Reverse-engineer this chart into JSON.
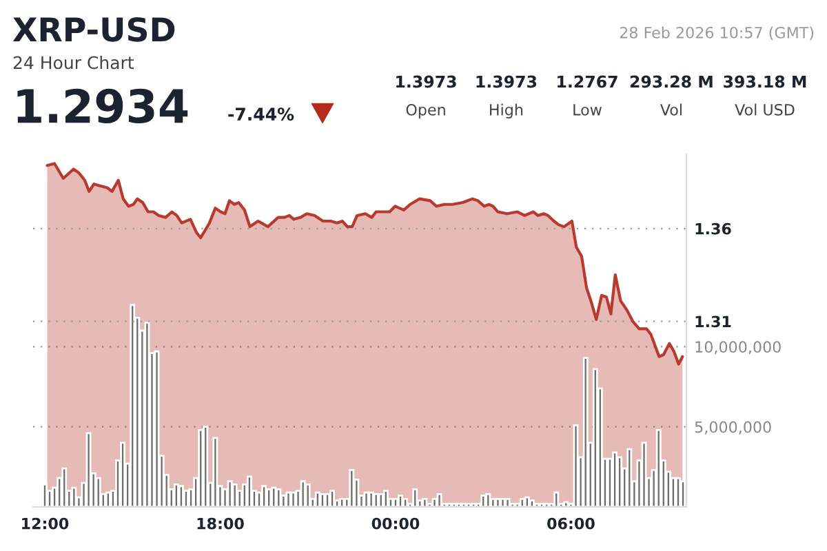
{
  "chart_data": {
    "type": "area",
    "title": "XRP-USD",
    "subtitle": "24 Hour Chart",
    "annotations": [
      "1.2934",
      "-7.44%",
      "1.3973",
      "Open",
      "1.3973",
      "High",
      "1.2767",
      "Low",
      "293.28 M",
      "Vol",
      "393.18 M",
      "Vol USD",
      "28 Feb 2026 10:57 (GMT)"
    ],
    "xlim": [
      "2026-02-27T11:36",
      "2026-02-28T09:57"
    ],
    "xticks": [
      {
        "value": "2026-02-27T12:00",
        "label": "12:00"
      },
      {
        "value": "2026-02-27T18:00",
        "label": "18:00"
      },
      {
        "value": "2026-02-28T00:00",
        "label": "00:00"
      },
      {
        "value": "2026-02-28T06:00",
        "label": "06:00"
      }
    ],
    "ylim": [
      1.21,
      1.4
    ],
    "yticks": [
      1.31,
      1.36
    ],
    "y2lim": [
      0,
      22000000
    ],
    "y2ticks": [
      {
        "value": 5000000,
        "label": "5,000,000"
      },
      {
        "value": 10000000,
        "label": "10,000,000"
      }
    ],
    "grid": "y",
    "series": [
      {
        "axis": "y",
        "color": "#b83a2e",
        "x": [
          "2026-02-27T12:05",
          "2026-02-27T12:20",
          "2026-02-27T12:38",
          "2026-02-27T12:59",
          "2026-02-27T13:10",
          "2026-02-27T13:22",
          "2026-02-27T13:31",
          "2026-02-27T13:41",
          "2026-02-27T13:53",
          "2026-02-27T14:08",
          "2026-02-27T14:18",
          "2026-02-27T14:31",
          "2026-02-27T14:41",
          "2026-02-27T14:52",
          "2026-02-27T15:02",
          "2026-02-27T15:10",
          "2026-02-27T15:21",
          "2026-02-27T15:32",
          "2026-02-27T15:43",
          "2026-02-27T15:54",
          "2026-02-27T16:08",
          "2026-02-27T16:21",
          "2026-02-27T16:31",
          "2026-02-27T16:41",
          "2026-02-27T16:59",
          "2026-02-27T17:11",
          "2026-02-27T17:20",
          "2026-02-27T17:38",
          "2026-02-27T17:50",
          "2026-02-27T18:01",
          "2026-02-27T18:10",
          "2026-02-27T18:19",
          "2026-02-27T18:29",
          "2026-02-27T18:38",
          "2026-02-27T18:50",
          "2026-02-27T19:01",
          "2026-02-27T19:18",
          "2026-02-27T19:38",
          "2026-02-27T19:59",
          "2026-02-27T20:12",
          "2026-02-27T20:22",
          "2026-02-27T20:31",
          "2026-02-27T20:45",
          "2026-02-27T20:58",
          "2026-02-27T21:14",
          "2026-02-27T21:31",
          "2026-02-27T21:47",
          "2026-02-27T22:00",
          "2026-02-27T22:11",
          "2026-02-27T22:21",
          "2026-02-27T22:31",
          "2026-02-27T22:41",
          "2026-02-27T22:58",
          "2026-02-27T23:11",
          "2026-02-27T23:20",
          "2026-02-27T23:40",
          "2026-02-27T23:48",
          "2026-02-27T23:59",
          "2026-02-28T00:17",
          "2026-02-28T00:30",
          "2026-02-28T00:49",
          "2026-02-28T01:11",
          "2026-02-28T01:24",
          "2026-02-28T01:40",
          "2026-02-28T01:57",
          "2026-02-28T02:18",
          "2026-02-28T02:38",
          "2026-02-28T02:49",
          "2026-02-28T03:02",
          "2026-02-28T03:12",
          "2026-02-28T03:20",
          "2026-02-28T03:30",
          "2026-02-28T03:49",
          "2026-02-28T04:10",
          "2026-02-28T04:25",
          "2026-02-28T04:43",
          "2026-02-28T04:52",
          "2026-02-28T05:04",
          "2026-02-28T05:13",
          "2026-02-28T05:25",
          "2026-02-28T05:35",
          "2026-02-28T05:46",
          "2026-02-28T06:02",
          "2026-02-28T06:11",
          "2026-02-28T06:22",
          "2026-02-28T06:32",
          "2026-02-28T06:41",
          "2026-02-28T06:52",
          "2026-02-28T07:03",
          "2026-02-28T07:13",
          "2026-02-28T07:22",
          "2026-02-28T07:31",
          "2026-02-28T07:42",
          "2026-02-28T07:55",
          "2026-02-28T08:07",
          "2026-02-28T08:20",
          "2026-02-28T08:35",
          "2026-02-28T08:44",
          "2026-02-28T09:01",
          "2026-02-28T09:10",
          "2026-02-28T09:22",
          "2026-02-28T09:31",
          "2026-02-28T09:41",
          "2026-02-28T09:49"
        ],
        "values": [
          1.394,
          1.395,
          1.387,
          1.392,
          1.39,
          1.386,
          1.38,
          1.384,
          1.383,
          1.382,
          1.38,
          1.386,
          1.376,
          1.372,
          1.373,
          1.376,
          1.374,
          1.369,
          1.369,
          1.367,
          1.366,
          1.369,
          1.367,
          1.363,
          1.365,
          1.358,
          1.355,
          1.363,
          1.371,
          1.369,
          1.368,
          1.375,
          1.373,
          1.374,
          1.37,
          1.361,
          1.364,
          1.361,
          1.366,
          1.366,
          1.367,
          1.365,
          1.366,
          1.368,
          1.367,
          1.364,
          1.364,
          1.363,
          1.364,
          1.361,
          1.361,
          1.367,
          1.368,
          1.366,
          1.369,
          1.369,
          1.369,
          1.372,
          1.37,
          1.373,
          1.376,
          1.375,
          1.372,
          1.373,
          1.373,
          1.374,
          1.376,
          1.375,
          1.372,
          1.373,
          1.372,
          1.369,
          1.368,
          1.369,
          1.367,
          1.369,
          1.367,
          1.368,
          1.367,
          1.364,
          1.362,
          1.361,
          1.364,
          1.35,
          1.345,
          1.328,
          1.321,
          1.311,
          1.324,
          1.323,
          1.314,
          1.335,
          1.321,
          1.316,
          1.31,
          1.306,
          1.306,
          1.303,
          1.291,
          1.292,
          1.298,
          1.294,
          1.287,
          1.291
        ]
      },
      {
        "type": "bar",
        "axis": "y2",
        "color": "#6e6e66",
        "x": [
          "2026-02-27T12:00",
          "2026-02-27T12:10",
          "2026-02-27T12:20",
          "2026-02-27T12:30",
          "2026-02-27T12:40",
          "2026-02-27T12:50",
          "2026-02-27T13:00",
          "2026-02-27T13:10",
          "2026-02-27T13:20",
          "2026-02-27T13:30",
          "2026-02-27T13:40",
          "2026-02-27T13:50",
          "2026-02-27T14:00",
          "2026-02-27T14:10",
          "2026-02-27T14:20",
          "2026-02-27T14:30",
          "2026-02-27T14:40",
          "2026-02-27T14:50",
          "2026-02-27T15:00",
          "2026-02-27T15:10",
          "2026-02-27T15:20",
          "2026-02-27T15:30",
          "2026-02-27T15:40",
          "2026-02-27T15:50",
          "2026-02-27T16:00",
          "2026-02-27T16:10",
          "2026-02-27T16:20",
          "2026-02-27T16:30",
          "2026-02-27T16:40",
          "2026-02-27T16:50",
          "2026-02-27T17:00",
          "2026-02-27T17:10",
          "2026-02-27T17:20",
          "2026-02-27T17:30",
          "2026-02-27T17:40",
          "2026-02-27T17:50",
          "2026-02-27T18:00",
          "2026-02-27T18:10",
          "2026-02-27T18:20",
          "2026-02-27T18:30",
          "2026-02-27T18:40",
          "2026-02-27T18:50",
          "2026-02-27T19:00",
          "2026-02-27T19:10",
          "2026-02-27T19:20",
          "2026-02-27T19:30",
          "2026-02-27T19:40",
          "2026-02-27T19:50",
          "2026-02-27T20:00",
          "2026-02-27T20:10",
          "2026-02-27T20:20",
          "2026-02-27T20:30",
          "2026-02-27T20:40",
          "2026-02-27T20:50",
          "2026-02-27T21:00",
          "2026-02-27T21:10",
          "2026-02-27T21:20",
          "2026-02-27T21:30",
          "2026-02-27T21:40",
          "2026-02-27T21:50",
          "2026-02-27T22:00",
          "2026-02-27T22:10",
          "2026-02-27T22:20",
          "2026-02-27T22:30",
          "2026-02-27T22:40",
          "2026-02-27T22:50",
          "2026-02-27T23:00",
          "2026-02-27T23:10",
          "2026-02-27T23:20",
          "2026-02-27T23:30",
          "2026-02-27T23:40",
          "2026-02-27T23:50",
          "2026-02-28T00:00",
          "2026-02-28T00:10",
          "2026-02-28T00:20",
          "2026-02-28T00:30",
          "2026-02-28T00:40",
          "2026-02-28T00:50",
          "2026-02-28T01:00",
          "2026-02-28T01:10",
          "2026-02-28T01:20",
          "2026-02-28T01:30",
          "2026-02-28T01:40",
          "2026-02-28T01:50",
          "2026-02-28T02:00",
          "2026-02-28T02:10",
          "2026-02-28T02:20",
          "2026-02-28T02:30",
          "2026-02-28T02:40",
          "2026-02-28T02:50",
          "2026-02-28T03:00",
          "2026-02-28T03:10",
          "2026-02-28T03:20",
          "2026-02-28T03:30",
          "2026-02-28T03:40",
          "2026-02-28T03:50",
          "2026-02-28T04:00",
          "2026-02-28T04:10",
          "2026-02-28T04:20",
          "2026-02-28T04:30",
          "2026-02-28T04:40",
          "2026-02-28T04:50",
          "2026-02-28T05:00",
          "2026-02-28T05:10",
          "2026-02-28T05:20",
          "2026-02-28T05:30",
          "2026-02-28T05:40",
          "2026-02-28T05:50",
          "2026-02-28T06:00",
          "2026-02-28T06:10",
          "2026-02-28T06:20",
          "2026-02-28T06:30",
          "2026-02-28T06:40",
          "2026-02-28T06:50",
          "2026-02-28T07:00",
          "2026-02-28T07:10",
          "2026-02-28T07:20",
          "2026-02-28T07:30",
          "2026-02-28T07:40",
          "2026-02-28T07:50",
          "2026-02-28T08:00",
          "2026-02-28T08:10",
          "2026-02-28T08:20",
          "2026-02-28T08:30",
          "2026-02-28T08:40",
          "2026-02-28T08:50",
          "2026-02-28T09:00",
          "2026-02-28T09:10",
          "2026-02-28T09:20",
          "2026-02-28T09:30",
          "2026-02-28T09:40",
          "2026-02-28T09:50"
        ],
        "values": [
          1400000,
          1000000,
          1200000,
          1800000,
          2400000,
          1000000,
          1200000,
          600000,
          1500000,
          4600000,
          2100000,
          1800000,
          800000,
          900000,
          1000000,
          2900000,
          4000000,
          2700000,
          12600000,
          11800000,
          11000000,
          11500000,
          9600000,
          9700000,
          3200000,
          2000000,
          1100000,
          1400000,
          1300000,
          1000000,
          1100000,
          1800000,
          4800000,
          5000000,
          1500000,
          4300000,
          1300000,
          1100000,
          1600000,
          1400000,
          1000000,
          1400000,
          1900000,
          1000000,
          900000,
          1300000,
          1100000,
          1200000,
          1100000,
          700000,
          900000,
          900000,
          1000000,
          1600000,
          1400000,
          500000,
          900000,
          800000,
          800000,
          1000000,
          400000,
          500000,
          500000,
          2300000,
          1700000,
          700000,
          900000,
          900000,
          800000,
          800000,
          1000000,
          500000,
          500000,
          700000,
          500000,
          200000,
          1100000,
          400000,
          500000,
          200000,
          500000,
          800000,
          200000,
          200000,
          200000,
          200000,
          200000,
          200000,
          200000,
          200000,
          700000,
          800000,
          500000,
          500000,
          500000,
          500000,
          200000,
          200000,
          500000,
          600000,
          400000,
          200000,
          200000,
          200000,
          200000,
          900000,
          200000,
          300000,
          200000,
          5100000,
          3100000,
          9300000,
          4000000,
          8600000,
          7400000,
          3000000,
          3000000,
          3400000,
          3100000,
          2400000,
          3600000,
          1600000,
          2900000,
          4000000,
          1800000,
          2300000,
          4800000,
          2900000,
          2200000,
          1800000,
          1800000,
          1600000
        ]
      }
    ]
  }
}
